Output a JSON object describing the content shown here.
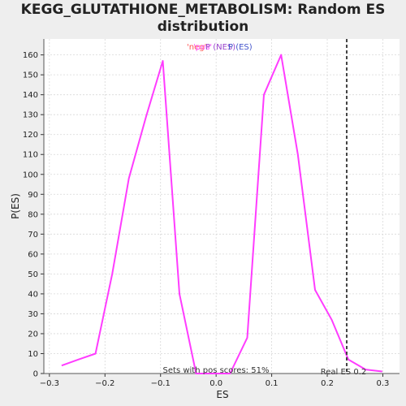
{
  "chart_data": {
    "type": "line",
    "title_lines": [
      "KEGG_GLUTATHIONE_METABOLISM: Random ES",
      "distribution"
    ],
    "xlabel": "ES",
    "ylabel": "P(ES)",
    "xlim": [
      -0.31,
      0.33
    ],
    "ylim": [
      0,
      168
    ],
    "xticks": [
      -0.3,
      -0.2,
      -0.1,
      0.0,
      0.1,
      0.2,
      0.3
    ],
    "xtick_labels": [
      "−0.3",
      "−0.2",
      "−0.1",
      "0.0",
      "0.1",
      "0.2",
      "0.3"
    ],
    "yticks": [
      0,
      10,
      20,
      30,
      40,
      50,
      60,
      70,
      80,
      90,
      100,
      110,
      120,
      130,
      140,
      150,
      160
    ],
    "grid": true,
    "legend": {
      "placement": "top-center",
      "entries": [
        {
          "label": "'neg'",
          "color": "#ff5050"
        },
        {
          "label": "'pos'",
          "color": "#ff55ff"
        },
        {
          "label": "P (NES)",
          "color": "#9944cc"
        },
        {
          "label": "P (ES)",
          "color": "#4455cc"
        }
      ]
    },
    "series": [
      {
        "color": "#ff3cff",
        "x": [
          -0.278,
          -0.248,
          -0.217,
          -0.187,
          -0.157,
          -0.126,
          -0.096,
          -0.066,
          -0.036,
          -0.005,
          0.025,
          0.056,
          0.086,
          0.117,
          0.147,
          0.178,
          0.208,
          0.238,
          0.269,
          0.299
        ],
        "y": [
          4,
          7,
          10,
          50,
          98,
          129,
          157,
          40,
          0,
          0,
          0,
          18,
          140,
          160,
          110,
          42,
          27,
          7,
          2,
          1
        ]
      }
    ],
    "reference_line": {
      "x": 0.235,
      "style": "dashed",
      "color": "#444444"
    },
    "annotations": {
      "pos_scores": "Sets with pos scores: 51%",
      "real_es": "Real ES 0.2"
    }
  }
}
